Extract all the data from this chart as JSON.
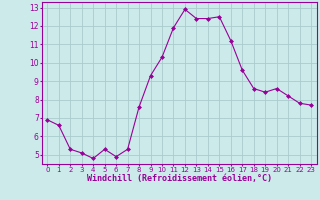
{
  "x": [
    0,
    1,
    2,
    3,
    4,
    5,
    6,
    7,
    8,
    9,
    10,
    11,
    12,
    13,
    14,
    15,
    16,
    17,
    18,
    19,
    20,
    21,
    22,
    23
  ],
  "y": [
    6.9,
    6.6,
    5.3,
    5.1,
    4.8,
    5.3,
    4.9,
    5.3,
    7.6,
    9.3,
    10.3,
    11.9,
    12.9,
    12.4,
    12.4,
    12.5,
    11.2,
    9.6,
    8.6,
    8.4,
    8.6,
    8.2,
    7.8,
    7.7
  ],
  "line_color": "#990099",
  "marker": "D",
  "marker_size": 2,
  "bg_color": "#cceaea",
  "grid_color": "#aacccc",
  "xlabel": "Windchill (Refroidissement éolien,°C)",
  "xlabel_color": "#990099",
  "tick_color": "#990099",
  "ylim": [
    4.5,
    13.3
  ],
  "xlim": [
    -0.5,
    23.5
  ],
  "yticks": [
    5,
    6,
    7,
    8,
    9,
    10,
    11,
    12,
    13
  ],
  "xticks": [
    0,
    1,
    2,
    3,
    4,
    5,
    6,
    7,
    8,
    9,
    10,
    11,
    12,
    13,
    14,
    15,
    16,
    17,
    18,
    19,
    20,
    21,
    22,
    23
  ],
  "xtick_labels": [
    "0",
    "1",
    "2",
    "3",
    "4",
    "5",
    "6",
    "7",
    "8",
    "9",
    "10",
    "11",
    "12",
    "13",
    "14",
    "15",
    "16",
    "17",
    "18",
    "19",
    "20",
    "21",
    "22",
    "23"
  ],
  "spine_color": "#990099",
  "xtick_fontsize": 5.0,
  "ytick_fontsize": 5.5,
  "xlabel_fontsize": 6.0
}
